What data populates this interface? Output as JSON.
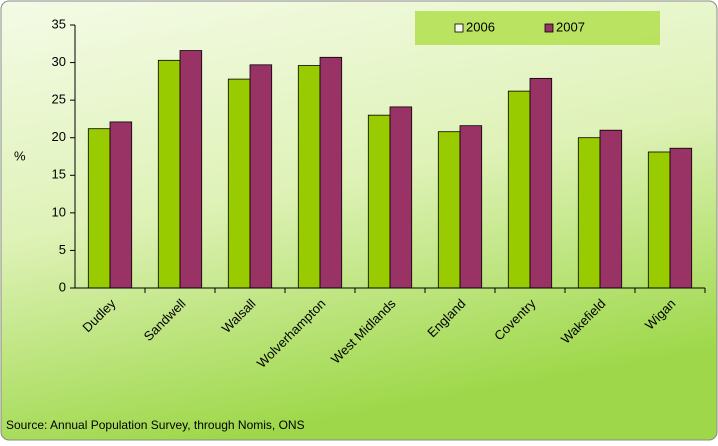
{
  "chart_data": {
    "type": "bar",
    "categories": [
      "Dudley",
      "Sandwell",
      "Walsall",
      "Wolverhampton",
      "West Midlands",
      "England",
      "Coventry",
      "Wakefield",
      "Wigan"
    ],
    "series": [
      {
        "name": "2006",
        "color": "#99cc00",
        "values": [
          21.2,
          30.3,
          27.8,
          29.6,
          23.0,
          20.8,
          26.2,
          20.0,
          18.1
        ]
      },
      {
        "name": "2007",
        "color": "#993366",
        "values": [
          22.1,
          31.6,
          29.7,
          30.7,
          24.1,
          21.6,
          27.9,
          21.0,
          18.6
        ]
      }
    ],
    "ylabel": "%",
    "ylim": [
      0,
      35
    ],
    "yticks": [
      0,
      5,
      10,
      15,
      20,
      25,
      30,
      35
    ],
    "legend": "top-right",
    "source": "Source: Annual Population Survey, through Nomis, ONS"
  }
}
